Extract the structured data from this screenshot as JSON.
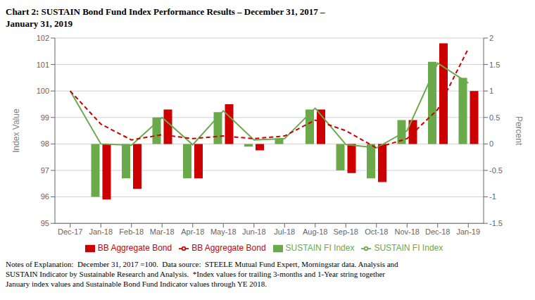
{
  "chart_data": {
    "type": "bar",
    "title": "Chart 2:  SUSTAIN Bond Fund Index Performance Results – December 31, 2017 –\nJanuary 31, 2019",
    "annotations": [
      "Notes of Explanation:  December 31, 2017 =100.  Data source:  STEELE Mutual Fund Expert, Morningstar data. Analysis and\nSUSTAIN Indicator by Sustainable Research and Analysis.  *Index values for trailing 3-months and 1-Year string together\nJanuary index values and Sustainable Bond Fund Indicator values through YE 2018."
    ],
    "ylabel": "Index Value",
    "y2label": "Percent",
    "categories": [
      "Dec-17",
      "Jan-18",
      "Feb-18",
      "Mar-18",
      "Apr-18",
      "May-18",
      "Jun-18",
      "Jul-18",
      "Aug-18",
      "Sep-18",
      "Oct-18",
      "Nov-18",
      "Dec-18",
      "Jan-19"
    ],
    "series": [
      {
        "name": "SUSTAIN FI Index",
        "type": "bar",
        "axis": "y2",
        "color": "#6aaa4b",
        "values": [
          null,
          -1.0,
          -0.65,
          0.5,
          -0.65,
          0.6,
          -0.05,
          0.1,
          0.65,
          -0.5,
          -0.65,
          0.45,
          1.55,
          1.25
        ]
      },
      {
        "name": "BB Aggregate Bond",
        "type": "bar",
        "axis": "y2",
        "color": "#cc0000",
        "values": [
          null,
          -1.05,
          -0.85,
          0.65,
          -0.65,
          0.75,
          -0.12,
          0.0,
          0.65,
          -0.55,
          -0.72,
          0.45,
          1.9,
          1.0
        ]
      },
      {
        "name": "SUSTAIN FI Index",
        "type": "line",
        "color": "#6aaa4b",
        "line_style": "solid",
        "values": [
          100.0,
          98.0,
          97.95,
          99.0,
          97.97,
          99.25,
          98.15,
          98.2,
          99.35,
          97.98,
          97.85,
          98.5,
          101.05,
          100.3
        ]
      },
      {
        "name": "BB Aggregate Bond",
        "type": "line",
        "color": "#cc0000",
        "line_style": "dashed",
        "values": [
          100.0,
          98.75,
          98.15,
          98.35,
          98.2,
          98.3,
          98.2,
          98.3,
          98.9,
          98.5,
          97.85,
          98.2,
          99.3,
          101.6
        ]
      }
    ],
    "ylim": [
      95,
      102
    ],
    "yticks": [
      95,
      96,
      97,
      98,
      99,
      100,
      101,
      102
    ],
    "y2lim": [
      -1.5,
      2.0
    ],
    "y2ticks": [
      -1.5,
      -1,
      -0.5,
      0,
      0.5,
      1,
      1.5,
      2
    ],
    "grid": true,
    "legend": "bottom"
  }
}
